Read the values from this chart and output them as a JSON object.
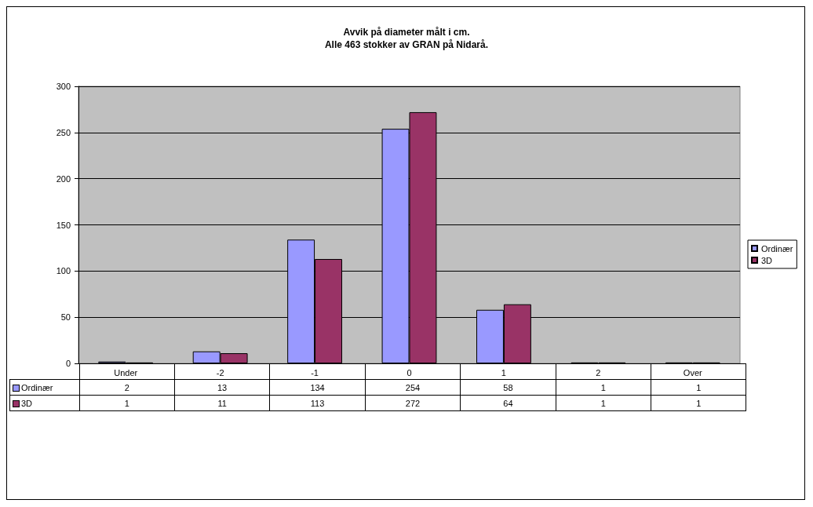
{
  "chart_data": {
    "type": "bar",
    "title": "Avvik på diameter målt i cm.",
    "subtitle": "Alle 463 stokker av GRAN på Nidarå.",
    "categories": [
      "Under",
      "-2",
      "-1",
      "0",
      "1",
      "2",
      "Over"
    ],
    "series": [
      {
        "name": "Ordinær",
        "color": "#9999ff",
        "values": [
          2,
          13,
          134,
          254,
          58,
          1,
          1
        ]
      },
      {
        "name": "3D",
        "color": "#993366",
        "values": [
          1,
          11,
          113,
          272,
          64,
          1,
          1
        ]
      }
    ],
    "ylim": [
      0,
      300
    ],
    "yticks": [
      0,
      50,
      100,
      150,
      200,
      250,
      300
    ],
    "grid": "y",
    "legend": "right",
    "data_labels": true
  }
}
